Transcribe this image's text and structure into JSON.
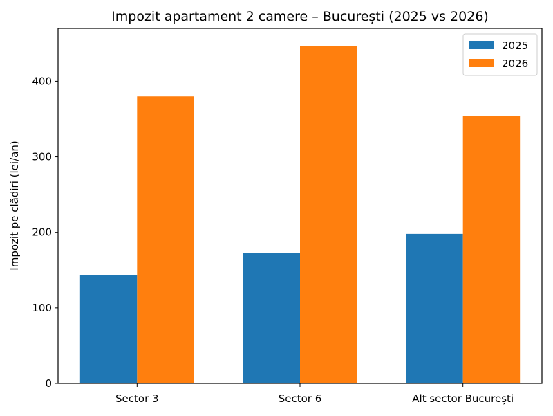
{
  "chart_data": {
    "type": "bar",
    "title": "Impozit apartament 2 camere – București (2025 vs 2026)",
    "xlabel": "",
    "ylabel": "Impozit pe clădiri (lei/an)",
    "categories": [
      "Sector 3",
      "Sector 6",
      "Alt sector București"
    ],
    "series": [
      {
        "name": "2025",
        "values": [
          143,
          173,
          198
        ],
        "color": "#1f77b4"
      },
      {
        "name": "2026",
        "values": [
          380,
          447,
          354
        ],
        "color": "#ff7f0e"
      }
    ],
    "ylim": [
      0,
      470
    ],
    "yticks": [
      0,
      100,
      200,
      300,
      400
    ],
    "grid": false,
    "legend_position": "top-right"
  }
}
